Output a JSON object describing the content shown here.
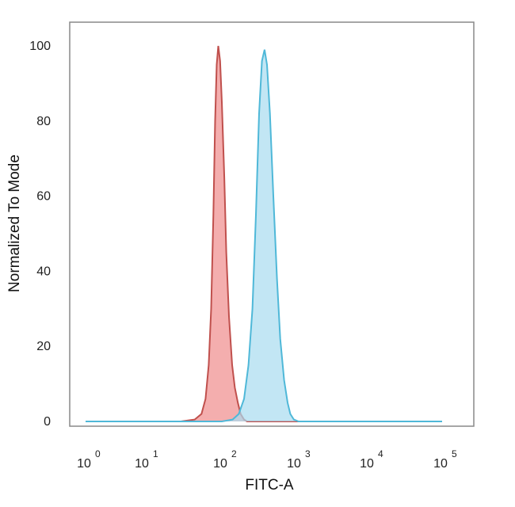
{
  "chart_data": {
    "type": "area",
    "title": "",
    "xlabel": "FITC-A",
    "ylabel": "Normalized To Mode",
    "x_scale": "log",
    "x_ticks": [
      {
        "base": "10",
        "exp": "0",
        "value": 1
      },
      {
        "base": "10",
        "exp": "1",
        "value": 10
      },
      {
        "base": "10",
        "exp": "2",
        "value": 100
      },
      {
        "base": "10",
        "exp": "3",
        "value": 1000
      },
      {
        "base": "10",
        "exp": "4",
        "value": 10000
      },
      {
        "base": "10",
        "exp": "5",
        "value": 100000
      }
    ],
    "y_ticks": [
      "0",
      "20",
      "40",
      "60",
      "80",
      "100"
    ],
    "ylim": [
      0,
      100
    ],
    "grid": false,
    "series": [
      {
        "color": "#f08c8c",
        "stroke": "#c0504d",
        "points": [
          [
            1,
            0
          ],
          [
            30,
            0
          ],
          [
            45,
            0.5
          ],
          [
            55,
            2
          ],
          [
            62,
            6
          ],
          [
            68,
            15
          ],
          [
            73,
            30
          ],
          [
            78,
            55
          ],
          [
            82,
            80
          ],
          [
            86,
            95
          ],
          [
            90,
            100
          ],
          [
            95,
            96
          ],
          [
            100,
            85
          ],
          [
            108,
            65
          ],
          [
            115,
            45
          ],
          [
            125,
            28
          ],
          [
            138,
            15
          ],
          [
            150,
            9
          ],
          [
            165,
            5
          ],
          [
            180,
            2
          ],
          [
            200,
            0.5
          ],
          [
            220,
            0
          ],
          [
            100000,
            0
          ]
        ]
      },
      {
        "color": "#a8dcf0",
        "stroke": "#4fb8d8",
        "points": [
          [
            1,
            0
          ],
          [
            100,
            0
          ],
          [
            140,
            0.5
          ],
          [
            170,
            2
          ],
          [
            200,
            6
          ],
          [
            230,
            15
          ],
          [
            260,
            30
          ],
          [
            290,
            55
          ],
          [
            320,
            82
          ],
          [
            350,
            96
          ],
          [
            380,
            99
          ],
          [
            410,
            95
          ],
          [
            450,
            82
          ],
          [
            500,
            60
          ],
          [
            560,
            38
          ],
          [
            620,
            22
          ],
          [
            700,
            11
          ],
          [
            780,
            5
          ],
          [
            850,
            2
          ],
          [
            950,
            0.5
          ],
          [
            1100,
            0
          ],
          [
            100000,
            0
          ]
        ]
      }
    ]
  }
}
